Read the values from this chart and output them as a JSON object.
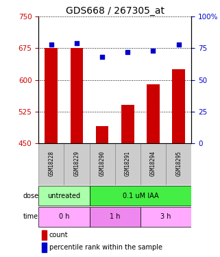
{
  "title": "GDS668 / 267305_at",
  "samples": [
    "GSM18228",
    "GSM18229",
    "GSM18290",
    "GSM18291",
    "GSM18294",
    "GSM18295"
  ],
  "counts": [
    675,
    676,
    490,
    540,
    590,
    625
  ],
  "percentiles": [
    78,
    79,
    68,
    72,
    73,
    78
  ],
  "ylim_left": [
    450,
    750
  ],
  "ylim_right": [
    0,
    100
  ],
  "yticks_left": [
    450,
    525,
    600,
    675,
    750
  ],
  "yticks_right": [
    0,
    25,
    50,
    75,
    100
  ],
  "bar_color": "#cc0000",
  "scatter_color": "#0000cc",
  "dose_groups": [
    {
      "label": "untreated",
      "start": 0,
      "end": 2,
      "color": "#aaffaa"
    },
    {
      "label": "0.1 uM IAA",
      "start": 2,
      "end": 6,
      "color": "#44ee44"
    }
  ],
  "time_groups": [
    {
      "label": "0 h",
      "start": 0,
      "end": 2,
      "color": "#ffaaff"
    },
    {
      "label": "1 h",
      "start": 2,
      "end": 4,
      "color": "#ee88ee"
    },
    {
      "label": "3 h",
      "start": 4,
      "end": 6,
      "color": "#ffaaff"
    }
  ],
  "dose_row_label": "dose",
  "time_row_label": "time",
  "legend_count_label": "count",
  "legend_pct_label": "percentile rank within the sample",
  "bar_width": 0.5,
  "title_fontsize": 10,
  "tick_fontsize": 7.5,
  "sample_fontsize": 5.5,
  "row_label_fontsize": 7,
  "group_fontsize": 7,
  "legend_fontsize": 7
}
